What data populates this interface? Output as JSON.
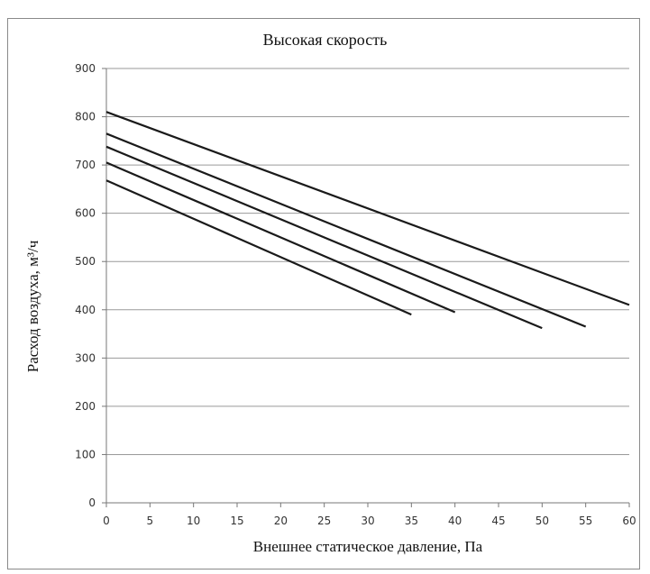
{
  "chart_data": {
    "type": "line",
    "title": "Высокая скорость",
    "xlabel": "Внешнее статическое давление, Па",
    "ylabel": "Расход воздуха, м³/ч",
    "xlim": [
      0,
      60
    ],
    "ylim": [
      0,
      900
    ],
    "x_ticks": [
      0,
      5,
      10,
      15,
      20,
      25,
      30,
      35,
      40,
      45,
      50,
      55,
      60
    ],
    "y_ticks": [
      0,
      100,
      200,
      300,
      400,
      500,
      600,
      700,
      800,
      900
    ],
    "grid": "horizontal",
    "line_color": "#1a1a1a",
    "series": [
      {
        "points": [
          [
            0,
            810
          ],
          [
            60,
            410
          ]
        ]
      },
      {
        "points": [
          [
            0,
            765
          ],
          [
            55,
            365
          ]
        ]
      },
      {
        "points": [
          [
            0,
            738
          ],
          [
            50,
            362
          ]
        ]
      },
      {
        "points": [
          [
            0,
            705
          ],
          [
            40,
            395
          ]
        ]
      },
      {
        "points": [
          [
            0,
            668
          ],
          [
            35,
            390
          ]
        ]
      }
    ]
  }
}
